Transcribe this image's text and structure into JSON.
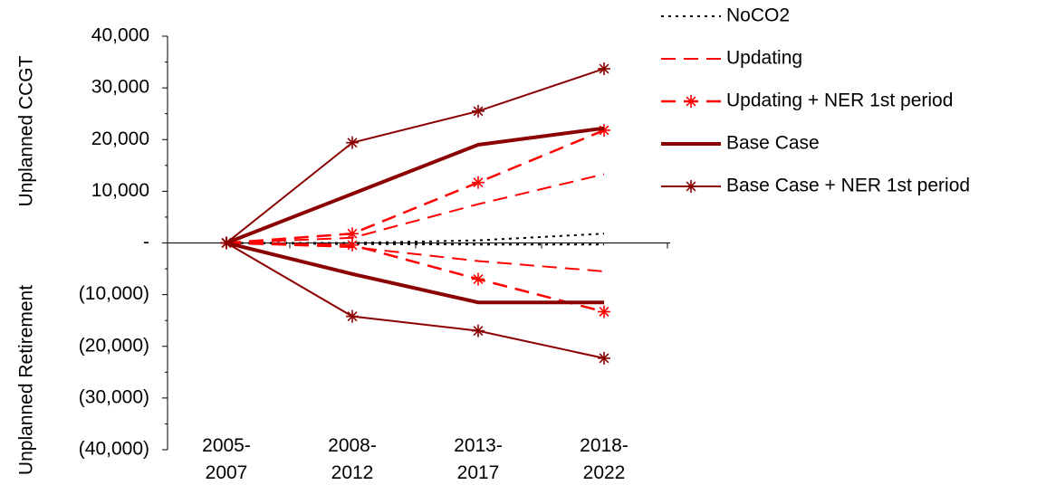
{
  "chart_data": {
    "type": "line",
    "y_label_top": "Unplanned CCGT",
    "y_label_bottom": "Unplanned Retirement",
    "categories": [
      "2005- 2007",
      "2008- 2012",
      "2013- 2017",
      "2018- 2022"
    ],
    "ylim": [
      -40000,
      40000
    ],
    "yticks": [
      {
        "value": 40000,
        "label": "40,000"
      },
      {
        "value": 30000,
        "label": "30,000"
      },
      {
        "value": 20000,
        "label": "20,000"
      },
      {
        "value": 10000,
        "label": "10,000"
      },
      {
        "value": 0,
        "label": "-"
      },
      {
        "value": -10000,
        "label": "(10,000)"
      },
      {
        "value": -20000,
        "label": "(20,000)"
      },
      {
        "value": -30000,
        "label": "(30,000)"
      },
      {
        "value": -40000,
        "label": "(40,000)"
      }
    ],
    "series": [
      {
        "name": "NoCO2",
        "color": "#000000",
        "dash": "3,5",
        "width": 2,
        "marker": false,
        "ccgt": [
          0,
          0,
          500,
          1800
        ],
        "retirement": [
          0,
          -200,
          -300,
          -300
        ]
      },
      {
        "name": "Updating",
        "color": "#ff0000",
        "dash": "16,9",
        "width": 2,
        "marker": false,
        "ccgt": [
          0,
          1000,
          7500,
          13300
        ],
        "retirement": [
          0,
          -800,
          -3500,
          -5500
        ]
      },
      {
        "name": "Updating + NER 1st period",
        "color": "#ff0000",
        "dash": "16,9",
        "width": 2.5,
        "marker": true,
        "ccgt": [
          0,
          1800,
          11700,
          21800
        ],
        "retirement": [
          0,
          -400,
          -7000,
          -13300
        ]
      },
      {
        "name": "Base Case",
        "color": "#8b0000",
        "dash": "",
        "width": 4,
        "marker": false,
        "ccgt": [
          0,
          9500,
          19000,
          22200
        ],
        "retirement": [
          0,
          -6000,
          -11500,
          -11500
        ]
      },
      {
        "name": "Base Case + NER 1st period",
        "color": "#8b0000",
        "dash": "",
        "width": 2,
        "marker": true,
        "ccgt": [
          0,
          19400,
          25500,
          33700
        ],
        "retirement": [
          0,
          -14200,
          -17000,
          -22300
        ]
      }
    ]
  }
}
